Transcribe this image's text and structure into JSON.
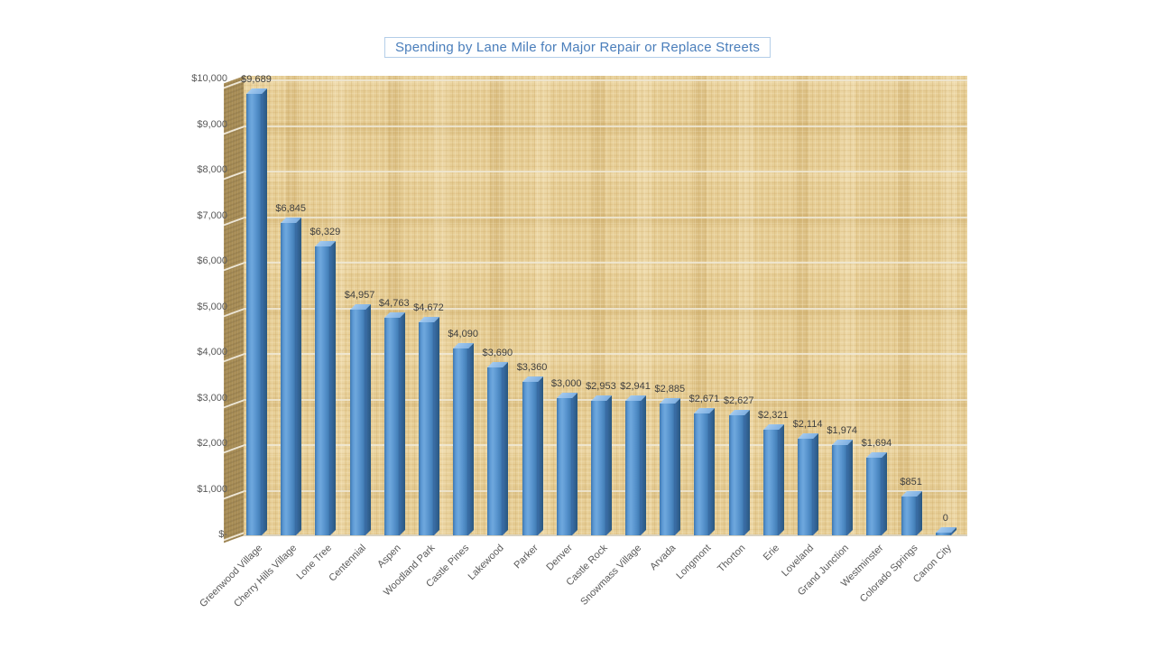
{
  "title": {
    "text": "Spending by Lane Mile for Major Repair or Replace Streets"
  },
  "colors": {
    "title_text": "#4a7ebb",
    "title_border": "#b3cde8",
    "bar_front": "#5793cd",
    "bar_side": "#2f639a",
    "bar_top": "#8fbce8",
    "plot_texture_base": "#e6cd95",
    "wall": "#a78c55",
    "gridline": "#eee7d5",
    "axis_text": "#595959",
    "data_label_text": "#3f3f3f",
    "page_background": "#ffffff"
  },
  "chart_data": {
    "type": "bar",
    "title": "Spending by Lane Mile for Major Repair or Replace Streets",
    "categories": [
      "Greenwood Village",
      "Cherry Hills Village",
      "Lone Tree",
      "Centennial",
      "Aspen",
      "Woodland Park",
      "Castle Pines",
      "Lakewood",
      "Parker",
      "Denver",
      "Castle Rock",
      "Snowmass Village",
      "Arvada",
      "Longmont",
      "Thorton",
      "Erie",
      "Loveland",
      "Grand Junction",
      "Westminster",
      "Colorado Springs",
      "Canon City"
    ],
    "values": [
      9689,
      6845,
      6329,
      4957,
      4763,
      4672,
      4090,
      3690,
      3360,
      3000,
      2953,
      2941,
      2885,
      2671,
      2627,
      2321,
      2114,
      1974,
      1694,
      851,
      0
    ],
    "value_labels": [
      "$9,689",
      "$6,845",
      "$6,329",
      "$4,957",
      "$4,763",
      "$4,672",
      "$4,090",
      "$3,690",
      "$3,360",
      "$3,000",
      "$2,953",
      "$2,941",
      "$2,885",
      "$2,671",
      "$2,627",
      "$2,321",
      "$2,114",
      "$1,974",
      "$1,694",
      "$851",
      "0"
    ],
    "y_tick_labels": [
      "$10,000",
      "$9,000",
      "$8,000",
      "$7,000",
      "$6,000",
      "$5,000",
      "$4,000",
      "$3,000",
      "$2,000",
      "$1,000",
      "$-"
    ],
    "y_tick_values": [
      10000,
      9000,
      8000,
      7000,
      6000,
      5000,
      4000,
      3000,
      2000,
      1000,
      0
    ],
    "ylim": [
      0,
      10000
    ],
    "xlabel": "",
    "ylabel": "",
    "grid": true,
    "legend": "none",
    "bar_style": "3d-box"
  }
}
